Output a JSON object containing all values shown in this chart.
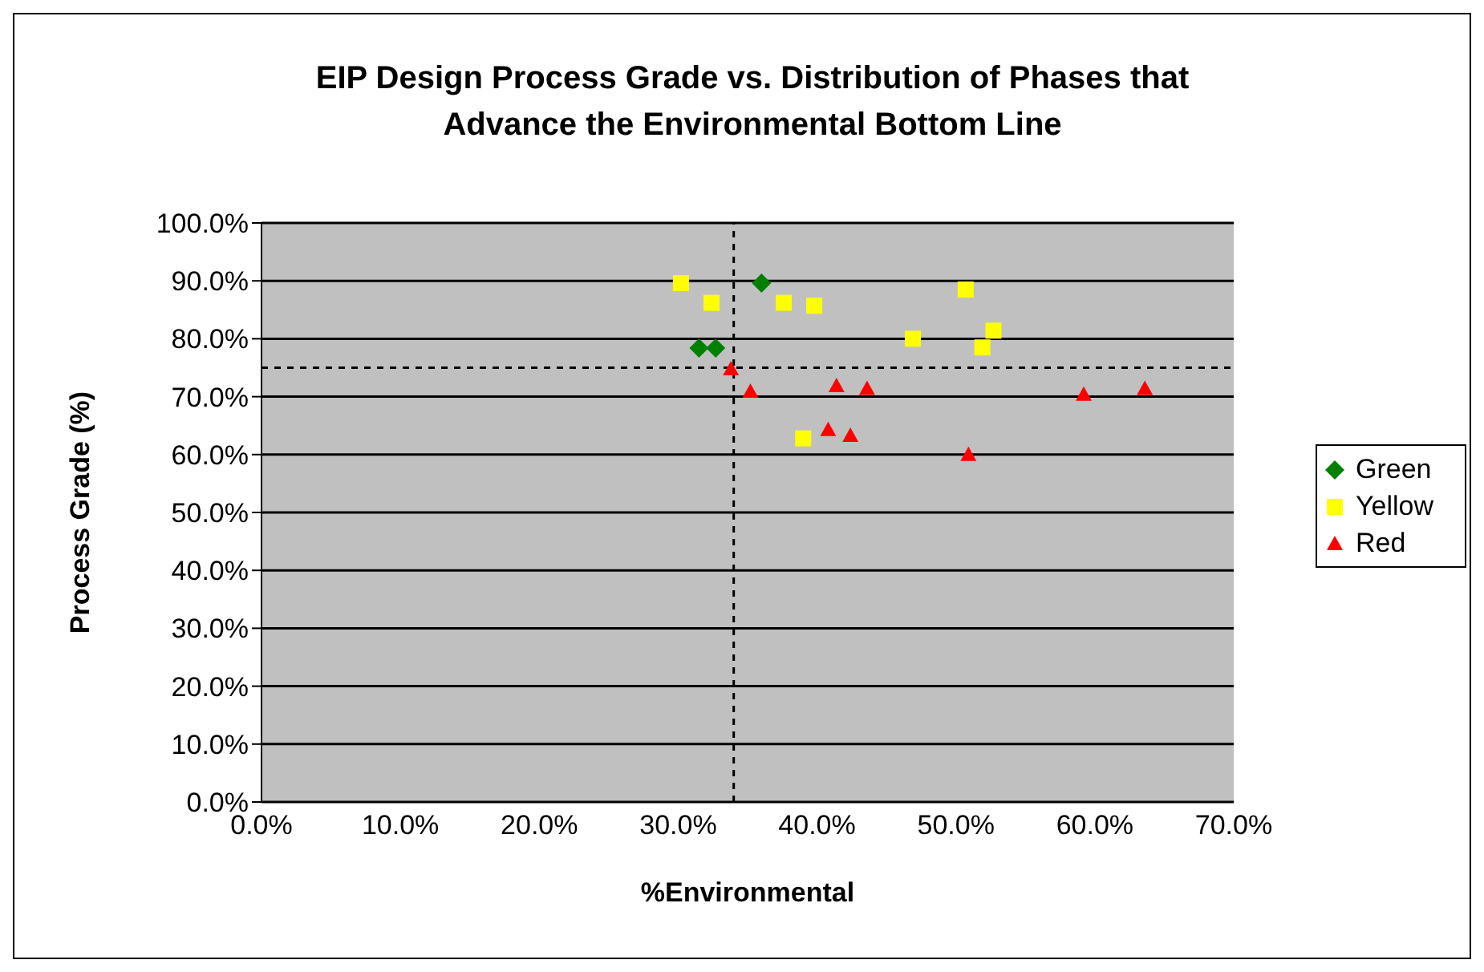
{
  "chart_data": {
    "type": "scatter",
    "title": "EIP Design Process Grade vs. Distribution of Phases that Advance the Environmental Bottom Line",
    "xlabel": "%Environmental",
    "ylabel": "Process Grade (%)",
    "xlim": [
      0,
      70
    ],
    "xticks": [
      {
        "value": 0,
        "label": "0.0%"
      },
      {
        "value": 10,
        "label": "10.0%"
      },
      {
        "value": 20,
        "label": "20.0%"
      },
      {
        "value": 30,
        "label": "30.0%"
      },
      {
        "value": 40,
        "label": "40.0%"
      },
      {
        "value": 50,
        "label": "50.0%"
      },
      {
        "value": 60,
        "label": "60.0%"
      },
      {
        "value": 70,
        "label": "70.0%"
      }
    ],
    "ylim": [
      0,
      100
    ],
    "yticks": [
      {
        "value": 0,
        "label": "0.0%"
      },
      {
        "value": 10,
        "label": "10.0%"
      },
      {
        "value": 20,
        "label": "20.0%"
      },
      {
        "value": 30,
        "label": "30.0%"
      },
      {
        "value": 40,
        "label": "40.0%"
      },
      {
        "value": 50,
        "label": "50.0%"
      },
      {
        "value": 60,
        "label": "60.0%"
      },
      {
        "value": 70,
        "label": "70.0%"
      },
      {
        "value": 80,
        "label": "80.0%"
      },
      {
        "value": 90,
        "label": "90.0%"
      },
      {
        "value": 100,
        "label": "100.0%"
      }
    ],
    "grid": "y",
    "legend": "right",
    "ref_lines": [
      {
        "axis": "x",
        "value": 34,
        "color": "#000000",
        "line_style": "dashed"
      },
      {
        "axis": "y",
        "value": 75,
        "color": "#000000",
        "line_style": "dashed"
      }
    ],
    "series": [
      {
        "name": "Green",
        "color": "#008000",
        "marker": "diamond",
        "x": [
          31.5,
          32.7,
          36.0
        ],
        "values": [
          78.4,
          78.4,
          89.6
        ]
      },
      {
        "name": "Yellow",
        "color": "#ffff00",
        "marker": "square",
        "x": [
          30.2,
          32.4,
          37.6,
          39.8,
          50.7,
          46.9,
          52.7,
          51.9,
          39.0
        ],
        "values": [
          89.6,
          86.2,
          86.2,
          85.7,
          88.5,
          80.0,
          81.4,
          78.5,
          62.8
        ]
      },
      {
        "name": "Red",
        "color": "#ff0000",
        "marker": "triangle",
        "x": [
          33.8,
          35.2,
          41.4,
          43.6,
          59.2,
          63.6,
          40.8,
          42.4,
          50.9
        ],
        "values": [
          74.8,
          70.9,
          71.9,
          71.4,
          70.4,
          71.4,
          64.3,
          63.3,
          60.0
        ]
      }
    ]
  }
}
